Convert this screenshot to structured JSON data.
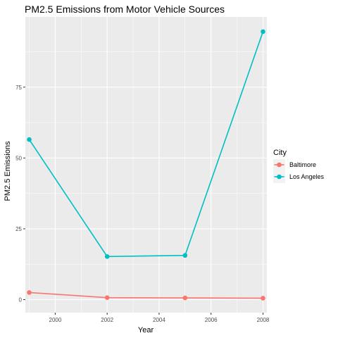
{
  "chart_data": {
    "type": "line",
    "title": "PM2.5 Emissions from Motor Vehicle Sources",
    "xlabel": "Year",
    "ylabel": "PM2.5 Emissions",
    "x": [
      1999,
      2002,
      2005,
      2008
    ],
    "xlim": [
      1998.85,
      2008.15
    ],
    "ylim": [
      -4.6,
      99.8
    ],
    "x_ticks": [
      2000,
      2002,
      2004,
      2006,
      2008
    ],
    "y_ticks": [
      0,
      25,
      50,
      75
    ],
    "x_tick_labels": [
      "2000",
      "2002",
      "2004",
      "2006",
      "2008"
    ],
    "y_tick_labels": [
      "0",
      "25",
      "50",
      "75"
    ],
    "grid": true,
    "legend": {
      "title": "City",
      "placement": "right"
    },
    "series": [
      {
        "name": "Baltimore",
        "color": "#F8766D",
        "values": [
          2.5,
          0.7,
          0.6,
          0.5
        ]
      },
      {
        "name": "Los Angeles",
        "color": "#00BFC4",
        "values": [
          56.5,
          15.2,
          15.6,
          94.6
        ]
      }
    ]
  }
}
